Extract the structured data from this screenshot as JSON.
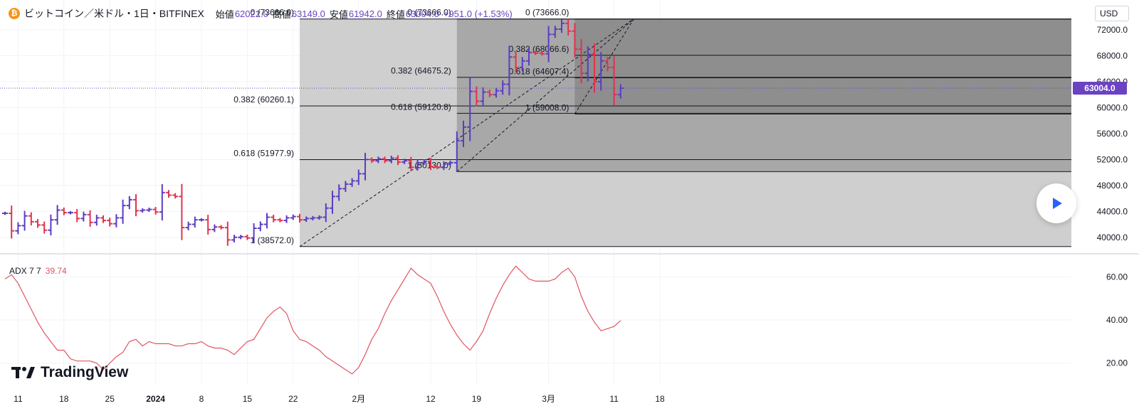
{
  "header": {
    "coin_icon": "bitcoin-icon",
    "symbol": "ビットコイン／米ドル・1日・BITFINEX",
    "open_label": "始値",
    "open": "62022.0",
    "high_label": "高値",
    "high": "63149.0",
    "low_label": "安値",
    "low": "61942.0",
    "close_label": "終値",
    "close": "63004.0",
    "change": "+951.0 (+1.53%)"
  },
  "currency": "USD",
  "brand": "TradingView",
  "colors": {
    "up": "#5b3cc4",
    "down": "#e0334f",
    "adx": "#e05563",
    "price_tag": "#6a42c2"
  },
  "chart_data": [
    {
      "type": "ohlc",
      "title": "ビットコイン／米ドル・1日・BITFINEX",
      "ylim": [
        38000,
        75500
      ],
      "yticks": [
        40000,
        44000,
        48000,
        52000,
        56000,
        60000,
        64000,
        68000,
        72000
      ],
      "ytick_labels": [
        "40000.0",
        "44000.0",
        "48000.0",
        "52000.0",
        "56000.0",
        "60000.0",
        "64000.0",
        "68000.0",
        "72000.0"
      ],
      "last_price": 63004.0,
      "last_price_label": "63004.0",
      "x_dates_start": "2023-12-09",
      "x_ticks": [
        {
          "date": "2023-12-11",
          "label": "11",
          "bold": false
        },
        {
          "date": "2023-12-18",
          "label": "18",
          "bold": false
        },
        {
          "date": "2023-12-25",
          "label": "25",
          "bold": false
        },
        {
          "date": "2024-01-01",
          "label": "2024",
          "bold": true
        },
        {
          "date": "2024-01-08",
          "label": "8",
          "bold": false
        },
        {
          "date": "2024-01-15",
          "label": "15",
          "bold": false
        },
        {
          "date": "2024-01-22",
          "label": "22",
          "bold": false
        },
        {
          "date": "2024-02-01",
          "label": "2月",
          "bold": false
        },
        {
          "date": "2024-02-12",
          "label": "12",
          "bold": false
        },
        {
          "date": "2024-02-19",
          "label": "19",
          "bold": false
        },
        {
          "date": "2024-03-01",
          "label": "3月",
          "bold": false
        },
        {
          "date": "2024-03-11",
          "label": "11",
          "bold": false
        },
        {
          "date": "2024-03-18",
          "label": "18",
          "bold": false
        }
      ],
      "closes": [
        43700,
        41000,
        41800,
        43300,
        42400,
        41900,
        41100,
        42700,
        44200,
        43800,
        43800,
        42900,
        43500,
        42300,
        43000,
        42600,
        42100,
        43000,
        44900,
        45800,
        44100,
        44200,
        44300,
        43900,
        46900,
        46500,
        46300,
        41500,
        42000,
        42700,
        42700,
        41200,
        41600,
        41500,
        39600,
        40000,
        40100,
        39900,
        41400,
        42000,
        43100,
        42700,
        42600,
        43000,
        43200,
        42700,
        42900,
        43000,
        43100,
        44500,
        46300,
        47500,
        48200,
        48700,
        49800,
        52000,
        51800,
        52100,
        51800,
        52200,
        51600,
        51800,
        50800,
        51500,
        51700,
        50900,
        50800,
        51300,
        51500,
        54900,
        57000,
        62500,
        61000,
        62400,
        62000,
        62600,
        63600,
        67800,
        66200,
        67200,
        68500,
        68400,
        68300,
        71300,
        72100,
        73000,
        71800,
        69000,
        65300,
        68200,
        64000,
        67200,
        66200,
        62000,
        63004
      ],
      "fibonacci": [
        {
          "date_from": "2024-01-23",
          "date_to": "2024-03-20",
          "levels": [
            {
              "ratio": "0",
              "price": 73666.0,
              "label": "0 (73666.0)"
            },
            {
              "ratio": "0.382",
              "price": 60260.1,
              "label": "0.382 (60260.1)"
            },
            {
              "ratio": "0.618",
              "price": 51977.9,
              "label": "0.618 (51977.9)"
            },
            {
              "ratio": "1",
              "price": 38572.0,
              "label": "1 (38572.0)"
            }
          ]
        },
        {
          "date_from": "2024-02-16",
          "date_to": "2024-03-20",
          "levels": [
            {
              "ratio": "0",
              "price": 73666.0,
              "label": "0 (73666.0)"
            },
            {
              "ratio": "0.382",
              "price": 64675.2,
              "label": "0.382 (64675.2)"
            },
            {
              "ratio": "0.618",
              "price": 59120.8,
              "label": "0.618 (59120.8)"
            },
            {
              "ratio": "1",
              "price": 50130.0,
              "label": "1 (50130.0)"
            }
          ]
        },
        {
          "date_from": "2024-03-05",
          "date_to": "2024-03-20",
          "levels": [
            {
              "ratio": "0",
              "price": 73666.0,
              "label": "0 (73666.0)"
            },
            {
              "ratio": "0.382",
              "price": 68066.6,
              "label": "0.382 (68066.6)"
            },
            {
              "ratio": "0.618",
              "price": 64607.4,
              "label": "0.618 (64607.4)"
            },
            {
              "ratio": "1",
              "price": 59008.0,
              "label": "1 (59008.0)"
            }
          ]
        }
      ]
    },
    {
      "type": "line",
      "title": "ADX 7 7",
      "last_value": "39.74",
      "ylim": [
        12,
        69
      ],
      "yticks": [
        20,
        40,
        60
      ],
      "ytick_labels": [
        "20.00",
        "40.00",
        "60.00"
      ],
      "values": [
        59,
        61,
        57,
        51,
        45,
        39,
        34,
        30,
        26,
        26,
        22,
        21,
        21,
        21,
        20,
        17,
        20,
        23,
        25,
        30,
        31,
        28,
        30,
        29,
        29,
        29,
        28,
        28,
        29,
        29,
        30,
        28,
        27,
        27,
        26,
        24,
        27,
        30,
        31,
        36,
        41,
        44,
        46,
        43,
        35,
        31,
        30,
        28,
        26,
        23,
        21,
        19,
        17,
        15,
        18,
        24,
        31,
        36,
        43,
        49,
        54,
        59,
        64,
        61,
        59,
        57,
        51,
        44,
        38,
        33,
        29,
        26,
        30,
        35,
        43,
        50,
        56,
        61,
        65,
        62,
        59,
        58,
        58,
        58,
        59,
        62,
        64,
        60,
        51,
        44,
        39,
        35,
        36,
        37,
        39.74
      ]
    }
  ]
}
